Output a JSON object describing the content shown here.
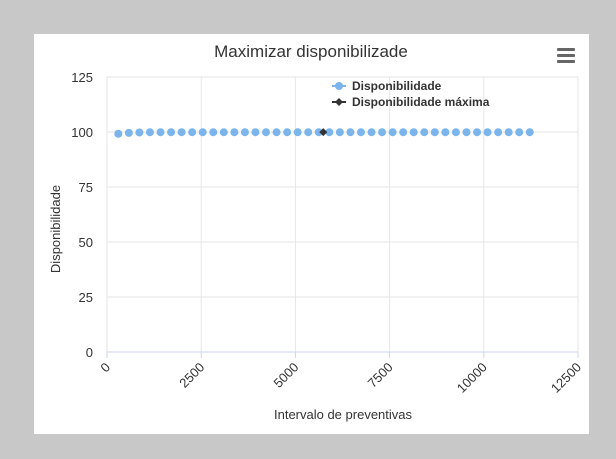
{
  "colors": {
    "background": "#c8c8c8",
    "panel": "#ffffff",
    "grid": "#e6e6e6",
    "axis": "#ccd6eb",
    "text": "#333333",
    "series1": "#7cb5ec",
    "series2": "#333333"
  },
  "menu": {
    "icon": "hamburger-menu-icon"
  },
  "chart_data": {
    "type": "scatter",
    "title": "Maximizar disponibilizade",
    "xlabel": "Intervalo de preventivas",
    "ylabel": "Disponibilidade",
    "xlim": [
      0,
      12500
    ],
    "ylim": [
      0,
      125
    ],
    "xticks": [
      0,
      2500,
      5000,
      7500,
      10000,
      12500
    ],
    "yticks": [
      0,
      25,
      50,
      75,
      100,
      125
    ],
    "xtick_labels": [
      "0",
      "2500",
      "5000",
      "7500",
      "10000",
      "12500"
    ],
    "ytick_labels": [
      "0",
      "25",
      "50",
      "75",
      "100",
      "125"
    ],
    "grid": true,
    "legend": {
      "position": "top-right",
      "entries": [
        "Disponibilidade",
        "Disponibilidade máxima"
      ]
    },
    "series": [
      {
        "name": "Disponibilidade",
        "x": [
          300,
          580,
          860,
          1140,
          1420,
          1700,
          1980,
          2260,
          2540,
          2820,
          3100,
          3380,
          3660,
          3940,
          4220,
          4500,
          4780,
          5060,
          5340,
          5620,
          5900,
          6180,
          6460,
          6740,
          7020,
          7300,
          7580,
          7860,
          8140,
          8420,
          8700,
          8980,
          9260,
          9540,
          9820,
          10100,
          10380,
          10660,
          10940,
          11220
        ],
        "y": [
          99.2,
          99.6,
          99.8,
          99.9,
          99.9,
          99.9,
          99.9,
          99.9,
          99.9,
          99.9,
          99.9,
          99.9,
          99.9,
          99.9,
          99.9,
          99.9,
          99.9,
          99.9,
          99.9,
          99.9,
          99.9,
          99.9,
          99.9,
          99.9,
          99.9,
          99.9,
          99.9,
          99.9,
          99.9,
          99.9,
          99.9,
          99.9,
          99.9,
          99.9,
          99.9,
          99.9,
          99.9,
          99.9,
          99.9,
          99.9
        ]
      },
      {
        "name": "Disponibilidade máxima",
        "x": [
          5740
        ],
        "y": [
          99.95
        ]
      }
    ]
  }
}
